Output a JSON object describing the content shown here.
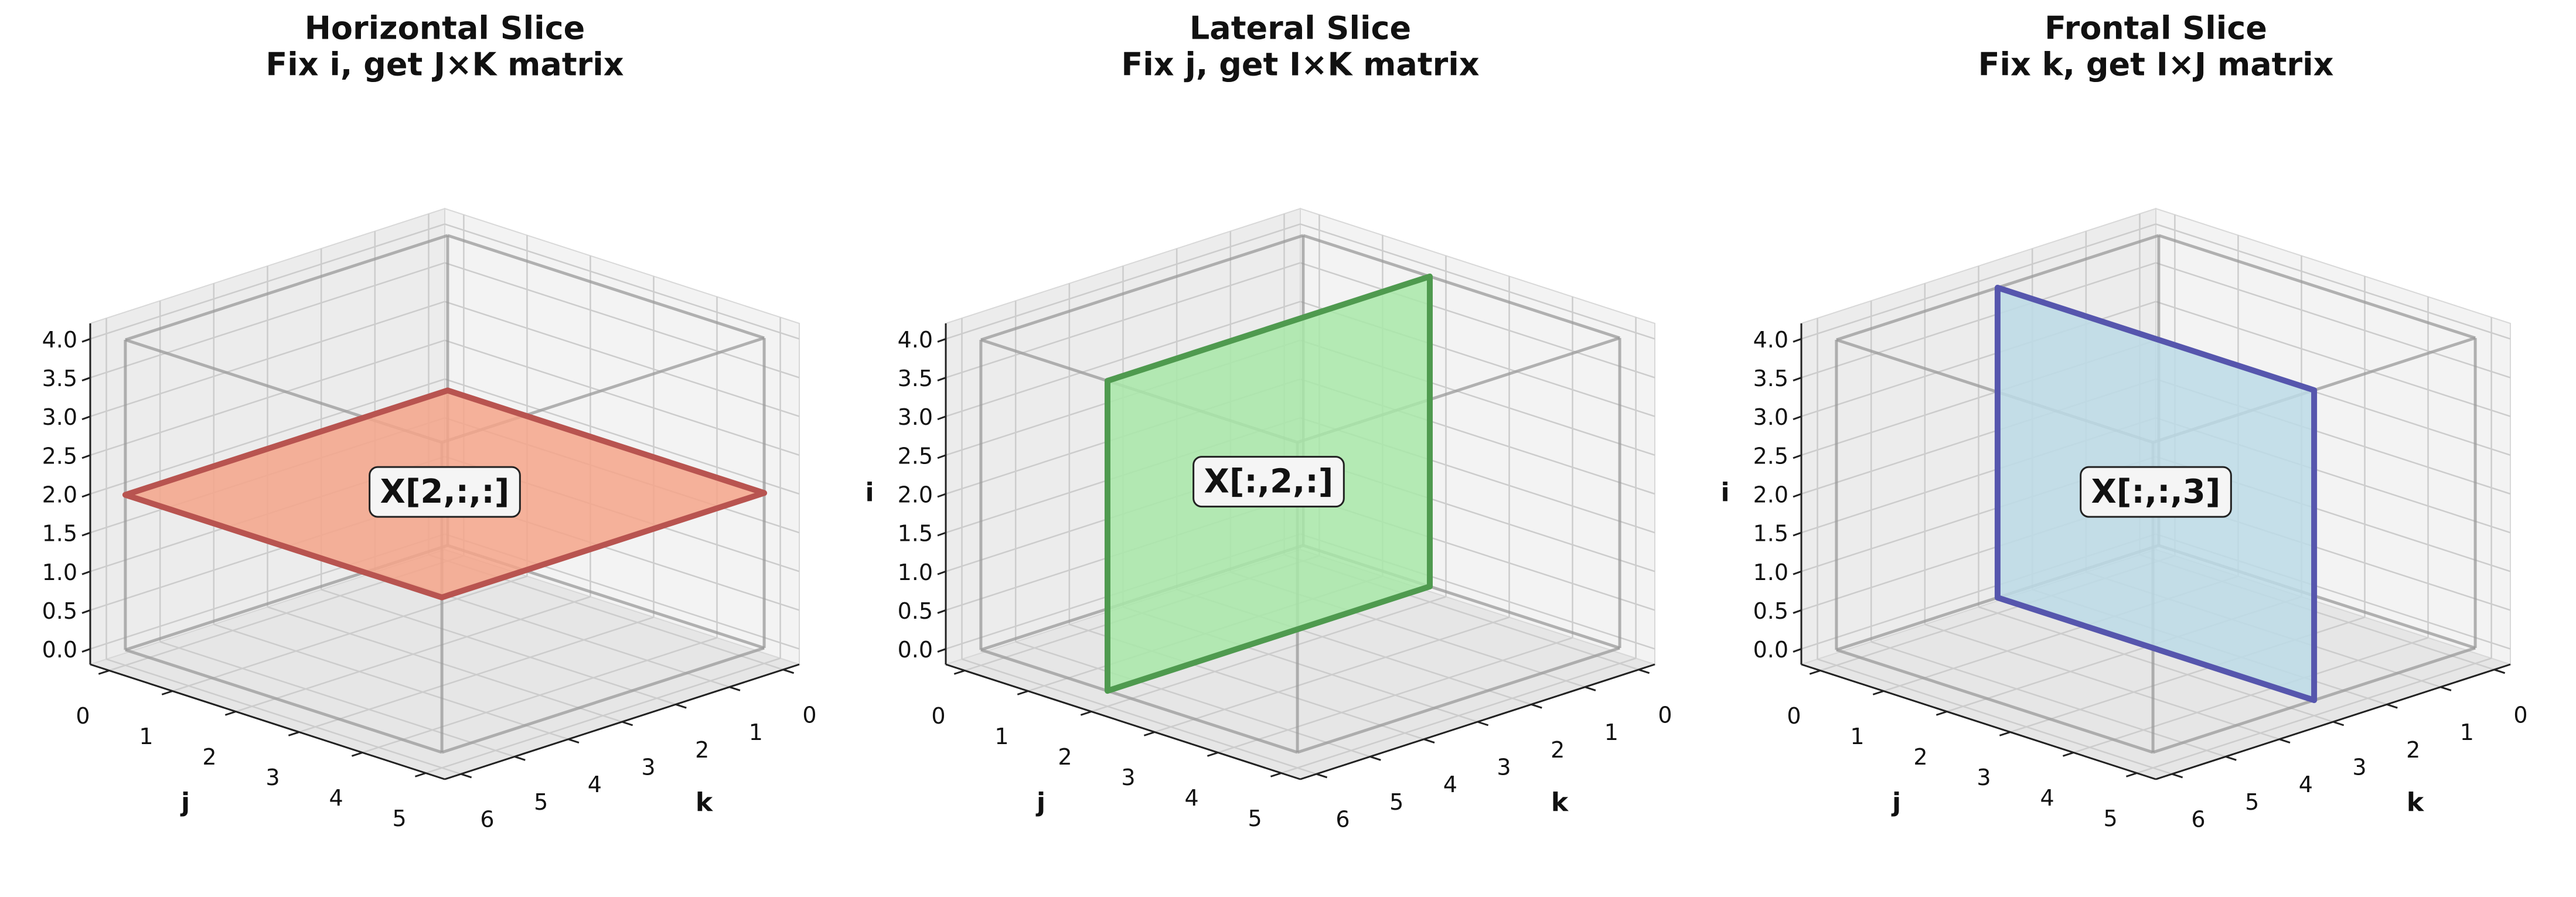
{
  "chart_data": [
    {
      "type": "slice3d",
      "title": "Horizontal Slice",
      "subtitle": "Fix i, get J×K matrix",
      "xlabel": "j",
      "ylabel": "k",
      "xlim": [
        -0.3,
        5.3
      ],
      "ylim": [
        -0.3,
        6.3
      ],
      "zlim": [
        -0.2,
        4.2
      ],
      "xticks": [
        0,
        1,
        2,
        3,
        4,
        5
      ],
      "yticks": [
        0,
        1,
        2,
        3,
        4,
        5,
        6
      ],
      "zticks": [
        {
          "value": 0,
          "label": "0.0"
        },
        0.5,
        {
          "value": 1,
          "label": "1.0"
        },
        1.5,
        {
          "value": 2,
          "label": "2.0"
        },
        2.5,
        {
          "value": 3,
          "label": "3.0"
        },
        3.5,
        {
          "value": 4,
          "label": "4.0"
        }
      ],
      "slice": {
        "axis": "z",
        "value": 2,
        "color": "#f4a58a",
        "edge_color": "#b85450"
      },
      "annotation": "X[2,:,:]"
    },
    {
      "type": "slice3d",
      "title": "Lateral Slice",
      "subtitle": "Fix j, get I×K matrix",
      "xlabel": "j",
      "ylabel": "k",
      "zlabel": "i",
      "xlim": [
        -0.3,
        5.3
      ],
      "ylim": [
        -0.3,
        6.3
      ],
      "zlim": [
        -0.2,
        4.2
      ],
      "xticks": [
        0,
        1,
        2,
        3,
        4,
        5
      ],
      "yticks": [
        0,
        1,
        2,
        3,
        4,
        5,
        6
      ],
      "zticks": [
        {
          "value": 0,
          "label": "0.0"
        },
        0.5,
        {
          "value": 1,
          "label": "1.0"
        },
        1.5,
        {
          "value": 2,
          "label": "2.0"
        },
        2.5,
        {
          "value": 3,
          "label": "3.0"
        },
        3.5,
        {
          "value": 4,
          "label": "4.0"
        }
      ],
      "slice": {
        "axis": "x",
        "value": 2,
        "color": "#a8e8a8",
        "edge_color": "#4f9a4f"
      },
      "annotation": "X[:,2,:]"
    },
    {
      "type": "slice3d",
      "title": "Frontal Slice",
      "subtitle": "Fix k, get I×J matrix",
      "xlabel": "j",
      "ylabel": "k",
      "zlabel": "i",
      "xlim": [
        -0.3,
        5.3
      ],
      "ylim": [
        -0.3,
        6.3
      ],
      "zlim": [
        -0.2,
        4.2
      ],
      "xticks": [
        0,
        1,
        2,
        3,
        4,
        5
      ],
      "yticks": [
        0,
        1,
        2,
        3,
        4,
        5,
        6
      ],
      "zticks": [
        {
          "value": 0,
          "label": "0.0"
        },
        0.5,
        {
          "value": 1,
          "label": "1.0"
        },
        1.5,
        {
          "value": 2,
          "label": "2.0"
        },
        2.5,
        {
          "value": 3,
          "label": "3.0"
        },
        3.5,
        {
          "value": 4,
          "label": "4.0"
        }
      ],
      "slice": {
        "axis": "y",
        "value": 3,
        "color": "#bcdbe6",
        "edge_color": "#5656ad"
      },
      "annotation": "X[:,:,3]"
    }
  ]
}
